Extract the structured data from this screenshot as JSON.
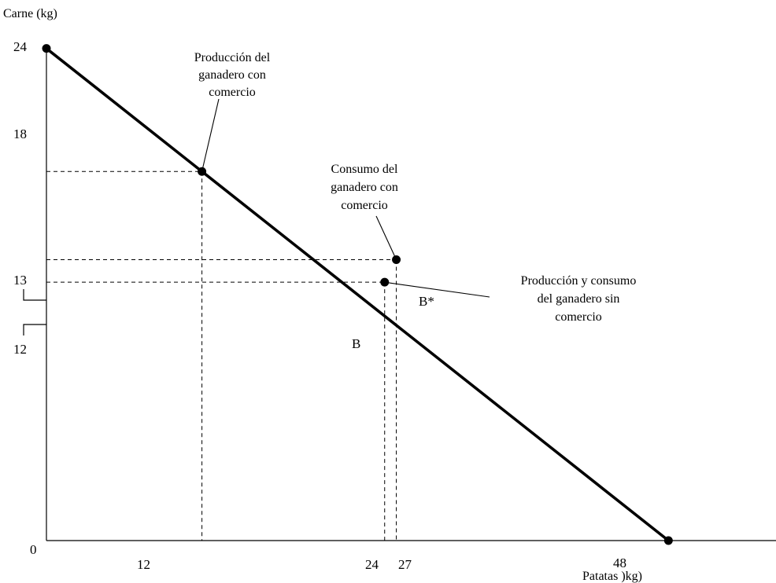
{
  "chart_data": {
    "type": "line",
    "xlabel": "Patatas )kg)",
    "ylabel": "Carne (kg)",
    "xlim": [
      0,
      56.3
    ],
    "ylim": [
      0,
      24.6
    ],
    "x_ticks": [
      {
        "value": 0,
        "label": "0"
      },
      {
        "value": 12,
        "label": "12"
      },
      {
        "value": 24,
        "label": "24"
      },
      {
        "value": 27,
        "label": "27"
      },
      {
        "value": 48,
        "label": "48"
      }
    ],
    "y_ticks": [
      {
        "value": 24,
        "label": "24"
      },
      {
        "value": 18,
        "label": "18"
      },
      {
        "value": 13,
        "label": "13"
      },
      {
        "value": 12,
        "label": "12"
      }
    ],
    "series": [
      {
        "points": [
          [
            0,
            24
          ],
          [
            48,
            0
          ]
        ]
      }
    ],
    "points": [
      {
        "id": "top",
        "x": 0,
        "y": 24,
        "label": ""
      },
      {
        "id": "production-with-trade",
        "x": 12,
        "y": 18,
        "label": ""
      },
      {
        "id": "B",
        "x": 26.1,
        "y": 12.6,
        "label": "B"
      },
      {
        "id": "B-star",
        "x": 27,
        "y": 13.7,
        "label": "B*"
      },
      {
        "id": "bottom",
        "x": 48,
        "y": 0,
        "label": ""
      }
    ],
    "annotations": [
      {
        "id": "production-with-trade",
        "lines": [
          "Producción del",
          "ganadero con",
          "comercio"
        ],
        "target": "production-with-trade"
      },
      {
        "id": "consumption-with-trade",
        "lines": [
          "Consumo del",
          "ganadero con",
          "comercio"
        ],
        "target": "B-star"
      },
      {
        "id": "production-consumption-without-trade",
        "lines": [
          "Producción y consumo",
          "del ganadero sin",
          "comercio"
        ],
        "target": "B"
      }
    ]
  }
}
